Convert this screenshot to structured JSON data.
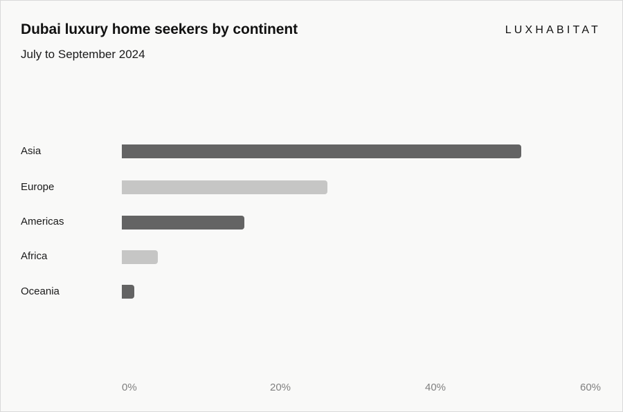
{
  "header": {
    "title": "Dubai luxury home seekers by continent",
    "subtitle": "July to September 2024",
    "brand": "LUXHABITAT"
  },
  "colors": {
    "background": "#f9f9f8",
    "bar_dark": "#646464",
    "bar_light": "#c6c6c5",
    "tick_text": "#808080"
  },
  "axis": {
    "ticks": [
      "0%",
      "20%",
      "40%",
      "60%"
    ]
  },
  "rows": [
    {
      "label": "Asia",
      "value": 51.5,
      "color": "#646464"
    },
    {
      "label": "Europe",
      "value": 26.5,
      "color": "#c6c6c5"
    },
    {
      "label": "Americas",
      "value": 15.8,
      "color": "#646464"
    },
    {
      "label": "Africa",
      "value": 4.6,
      "color": "#c6c6c5"
    },
    {
      "label": "Oceania",
      "value": 1.6,
      "color": "#646464"
    }
  ],
  "chart_data": {
    "type": "bar",
    "orientation": "horizontal",
    "title": "Dubai luxury home seekers by continent",
    "subtitle": "July to September 2024",
    "categories": [
      "Asia",
      "Europe",
      "Americas",
      "Africa",
      "Oceania"
    ],
    "values": [
      51.5,
      26.5,
      15.8,
      4.6,
      1.6
    ],
    "unit": "%",
    "xlabel": "",
    "ylabel": "",
    "xlim": [
      0,
      60
    ],
    "xticks": [
      "0%",
      "20%",
      "40%",
      "60%"
    ],
    "grid": false,
    "legend": null,
    "source_brand": "LUXHABITAT"
  }
}
